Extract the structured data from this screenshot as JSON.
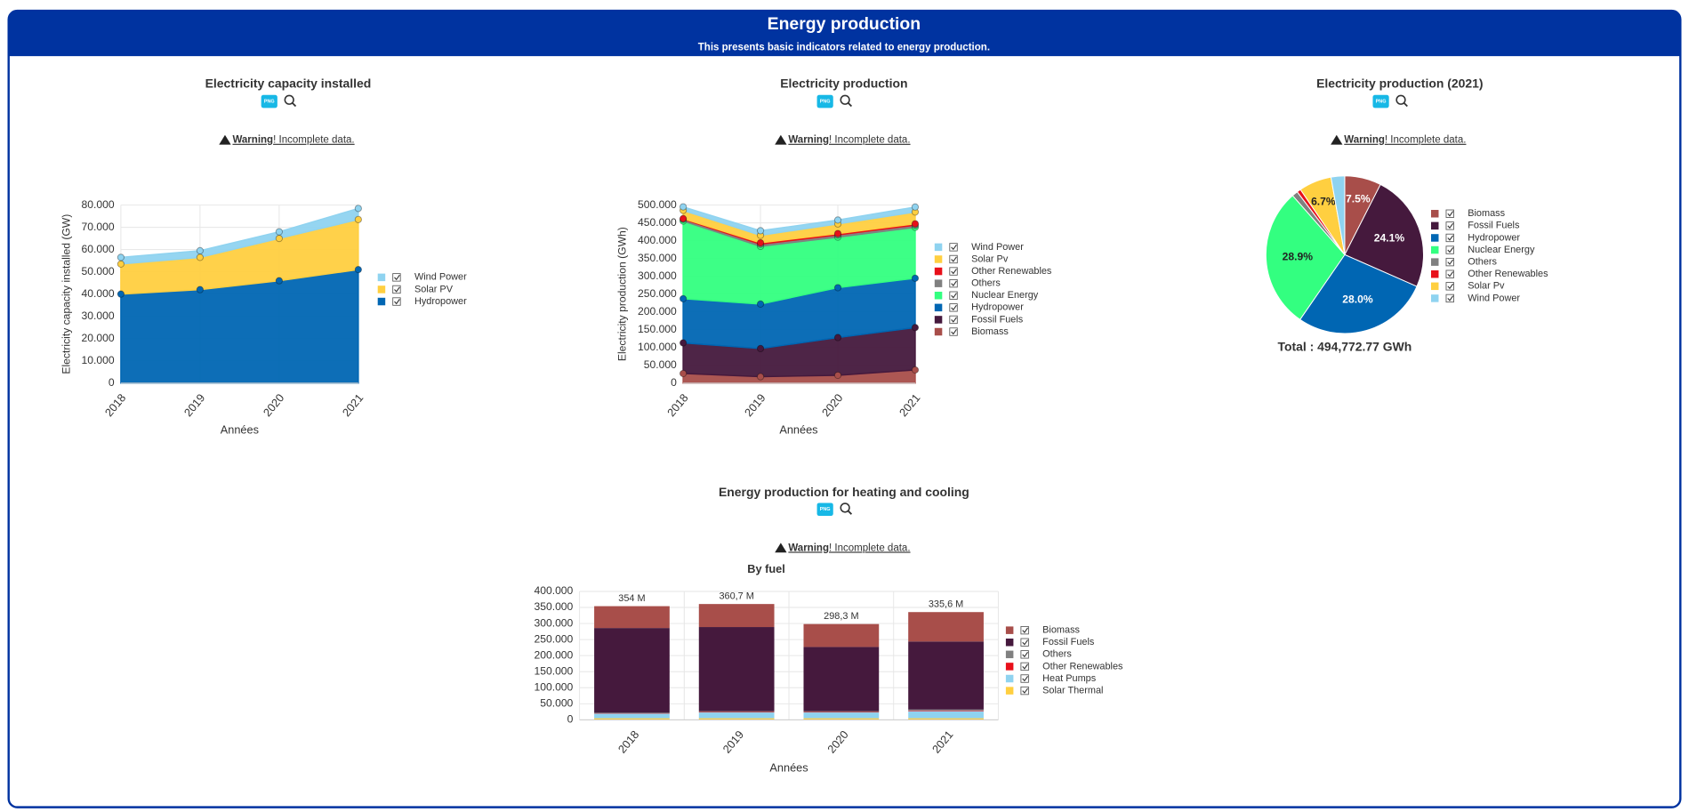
{
  "header": {
    "title": "Energy production",
    "subtitle": "This presents basic indicators related to energy production."
  },
  "chart_data": [
    {
      "type": "area",
      "title": "Electricity capacity installed",
      "export_label": "PNG",
      "warning_strong": "Warning",
      "warning_rest": "! Incomplete data.",
      "categories": [
        "2018",
        "2019",
        "2020",
        "2021"
      ],
      "series": [
        {
          "name": "Wind Power",
          "color": "#8fd3f0",
          "values": [
            3000,
            3000,
            3000,
            5000
          ]
        },
        {
          "name": "Solar PV",
          "color": "#ffcf40",
          "values": [
            13500,
            14500,
            19000,
            22500
          ]
        },
        {
          "name": "Hydropower",
          "color": "#0066b3",
          "values": [
            40000,
            42000,
            46000,
            51000
          ]
        }
      ],
      "xlabel": "Années",
      "ylabel": "Electricity capacity installed (GW)",
      "ylim": [
        0,
        80000
      ],
      "yticks": [
        0,
        {
          "value": 10000,
          "label": "10.000"
        },
        {
          "value": 20000,
          "label": "20.000"
        },
        {
          "value": 30000,
          "label": "30.000"
        },
        {
          "value": 40000,
          "label": "40.000"
        },
        {
          "value": 50000,
          "label": "50.000"
        },
        {
          "value": 60000,
          "label": "60.000"
        },
        {
          "value": 70000,
          "label": "70.000"
        },
        {
          "value": 80000,
          "label": "80.000"
        }
      ],
      "grid": true,
      "legend": "right"
    },
    {
      "type": "area",
      "title": "Electricity production",
      "export_label": "PNG",
      "warning_strong": "Warning",
      "warning_rest": "! Incomplete data.",
      "categories": [
        "2018",
        "2019",
        "2020",
        "2021"
      ],
      "series": [
        {
          "name": "Wind Power",
          "color": "#8fd3f0",
          "values": [
            10000,
            13000,
            11000,
            14000
          ]
        },
        {
          "name": "Solar Pv",
          "color": "#ffcf40",
          "values": [
            23000,
            21000,
            27000,
            33000
          ]
        },
        {
          "name": "Other Renewables",
          "color": "#e8101a",
          "values": [
            2000,
            4000,
            4000,
            4000
          ]
        },
        {
          "name": "Others",
          "color": "#808080",
          "values": [
            5000,
            6000,
            6000,
            6000
          ]
        },
        {
          "name": "Nuclear Energy",
          "color": "#33ff80",
          "values": [
            218000,
            162000,
            142000,
            143000
          ]
        },
        {
          "name": "Hydropower",
          "color": "#0066b3",
          "values": [
            124000,
            125000,
            140000,
            138500
          ]
        },
        {
          "name": "Fossil Fuels",
          "color": "#45193d",
          "values": [
            86000,
            79000,
            106000,
            119000
          ]
        },
        {
          "name": "Biomass",
          "color": "#a84e4a",
          "values": [
            27000,
            18000,
            22000,
            37000
          ]
        }
      ],
      "xlabel": "Années",
      "ylabel": "Electricity production (GWh)",
      "ylim": [
        0,
        500000
      ],
      "yticks": [
        0,
        {
          "value": 50000,
          "label": "50.000"
        },
        {
          "value": 100000,
          "label": "100.000"
        },
        {
          "value": 150000,
          "label": "150.000"
        },
        {
          "value": 200000,
          "label": "200.000"
        },
        {
          "value": 250000,
          "label": "250.000"
        },
        {
          "value": 300000,
          "label": "300.000"
        },
        {
          "value": 350000,
          "label": "350.000"
        },
        {
          "value": 400000,
          "label": "400.000"
        },
        {
          "value": 450000,
          "label": "450.000"
        },
        {
          "value": 500000,
          "label": "500.000"
        }
      ],
      "grid": true,
      "legend": "right"
    },
    {
      "type": "pie",
      "title": "Electricity production (2021)",
      "export_label": "PNG",
      "warning_strong": "Warning",
      "warning_rest": "! Incomplete data.",
      "categories": [
        "Biomass",
        "Fossil Fuels",
        "Hydropower",
        "Nuclear Energy",
        "Others",
        "Other Renewables",
        "Solar Pv",
        "Wind Power"
      ],
      "colors": [
        "#a84e4a",
        "#45193d",
        "#0066b3",
        "#33ff80",
        "#808080",
        "#e8101a",
        "#ffcf40",
        "#8fd3f0"
      ],
      "values": [
        7.5,
        24.1,
        28.0,
        28.9,
        1.2,
        0.8,
        6.7,
        2.8
      ],
      "value_labels": [
        "7.5%",
        "24.1%",
        "28.0%",
        "28.9%",
        null,
        null,
        "6.7%",
        null
      ],
      "total": "Total : 494,772.77 GWh",
      "legend": "right"
    },
    {
      "type": "bar",
      "title": "Energy production for heating and cooling",
      "subtitle": "By fuel",
      "export_label": "PNG",
      "warning_strong": "Warning",
      "warning_rest": "! Incomplete data.",
      "categories": [
        "2018",
        "2019",
        "2020",
        "2021"
      ],
      "series": [
        {
          "name": "Biomass",
          "color": "#a84e4a",
          "values": [
            68000,
            71700,
            71300,
            91600
          ]
        },
        {
          "name": "Fossil Fuels",
          "color": "#45193d",
          "values": [
            264000,
            262000,
            200000,
            212000
          ]
        },
        {
          "name": "Others",
          "color": "#808080",
          "values": [
            2000,
            2500,
            2500,
            3000
          ]
        },
        {
          "name": "Other Renewables",
          "color": "#e8101a",
          "values": [
            1000,
            1500,
            1500,
            2000
          ]
        },
        {
          "name": "Heat Pumps",
          "color": "#8fd3f0",
          "values": [
            14000,
            18000,
            18000,
            22000
          ]
        },
        {
          "name": "Solar Thermal",
          "color": "#ffcf40",
          "values": [
            5000,
            5000,
            5000,
            5000
          ]
        }
      ],
      "total_labels": [
        "354 M",
        "360,7 M",
        "298,3 M",
        "335,6 M"
      ],
      "xlabel": "Années",
      "ylim": [
        0,
        400000
      ],
      "yticks": [
        0,
        {
          "value": 50000,
          "label": "50.000"
        },
        {
          "value": 100000,
          "label": "100.000"
        },
        {
          "value": 150000,
          "label": "150.000"
        },
        {
          "value": 200000,
          "label": "200.000"
        },
        {
          "value": 250000,
          "label": "250.000"
        },
        {
          "value": 300000,
          "label": "300.000"
        },
        {
          "value": 350000,
          "label": "350.000"
        },
        {
          "value": 400000,
          "label": "400.000"
        }
      ],
      "grid": true,
      "legend": "right"
    }
  ]
}
